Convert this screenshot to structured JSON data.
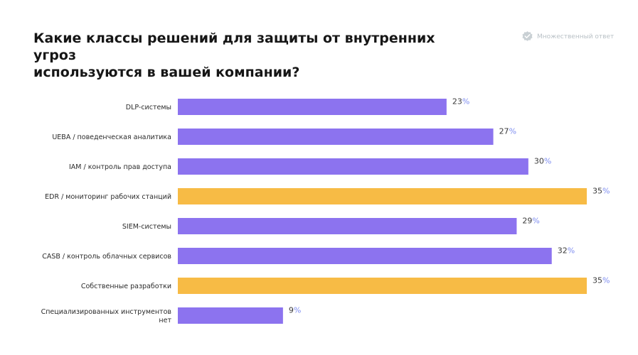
{
  "header": {
    "title_lines": [
      "Какие классы решений для защиты от внутренних угроз",
      "используются в вашей компании?"
    ],
    "badge_label": "Множественный ответ",
    "badge_icon": "check-badge-icon"
  },
  "colors": {
    "default_bar": "#8c73ef",
    "highlight_bar": "#f7bb45",
    "badge": "#b9c1c6"
  },
  "chart_data": {
    "type": "bar",
    "orientation": "horizontal",
    "title": "Какие классы решений для защиты от внутренних угроз используются в вашей компании?",
    "unit": "%",
    "categories": [
      "DLP-системы",
      "UEBA / поведенческая аналитика",
      "IAM / контроль прав доступа",
      "EDR / мониторинг рабочих станций",
      "SIEM-системы",
      "CASB / контроль облачных сервисов",
      "Собственные разработки",
      "Специализированных инструментов нет"
    ],
    "values": [
      23,
      27,
      30,
      35,
      29,
      32,
      35,
      9
    ],
    "highlighted": [
      false,
      false,
      false,
      true,
      false,
      false,
      true,
      false
    ],
    "xlim": [
      0,
      35
    ],
    "grid": false,
    "legend": "none"
  }
}
